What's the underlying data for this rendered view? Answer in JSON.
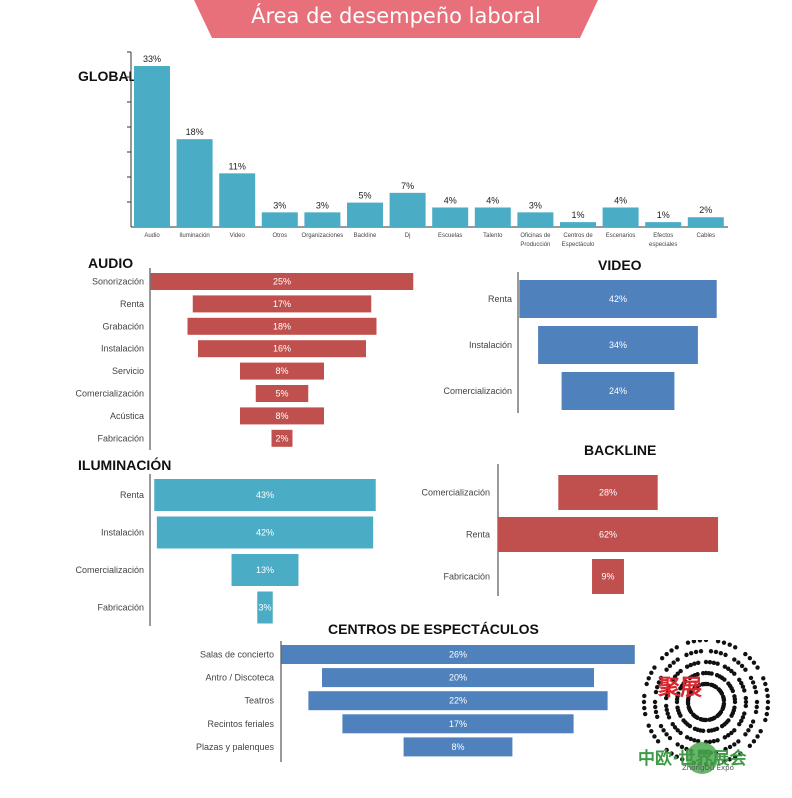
{
  "header": {
    "title": "Área de desempeño laboral"
  },
  "colors": {
    "banner": "#e8707a",
    "global": "#4bacc6",
    "audio": "#c0504d",
    "video": "#4f81bd",
    "iluminacion": "#4bacc6",
    "backline": "#c0504d",
    "centros": "#4f81bd"
  },
  "chart_data": [
    {
      "id": "global",
      "type": "bar",
      "title": "GLOBAL",
      "categories": [
        "Audio",
        "Iluminación",
        "Video",
        "Otros",
        "Organizaciones",
        "Backline",
        "Dj",
        "Escuelas",
        "Talento",
        "Oficinas de Producción",
        "Centros de Espectáculo",
        "Escenarios",
        "Efectos especiales",
        "Cables"
      ],
      "values": [
        33,
        18,
        11,
        3,
        3,
        5,
        7,
        4,
        4,
        3,
        1,
        4,
        1,
        2
      ],
      "unit": "%",
      "ylim": [
        0,
        35
      ]
    },
    {
      "id": "audio",
      "type": "bar",
      "orientation": "funnel",
      "title": "AUDIO",
      "categories": [
        "Sonorización",
        "Renta",
        "Grabación",
        "Instalación",
        "Servicio",
        "Comercialización",
        "Acústica",
        "Fabricación"
      ],
      "values": [
        25,
        17,
        18,
        16,
        8,
        5,
        8,
        2
      ],
      "unit": "%"
    },
    {
      "id": "video",
      "type": "bar",
      "orientation": "funnel",
      "title": "VIDEO",
      "categories": [
        "Renta",
        "Instalación",
        "Comercialización"
      ],
      "values": [
        42,
        34,
        24
      ],
      "unit": "%"
    },
    {
      "id": "iluminacion",
      "type": "bar",
      "orientation": "funnel",
      "title": "ILUMINACIÓN",
      "categories": [
        "Renta",
        "Instalación",
        "Comercialización",
        "Fabricación"
      ],
      "values": [
        43,
        42,
        13,
        3
      ],
      "unit": "%"
    },
    {
      "id": "backline",
      "type": "bar",
      "orientation": "funnel",
      "title": "BACKLINE",
      "categories": [
        "Comercialización",
        "Renta",
        "Fabricación"
      ],
      "values": [
        28,
        62,
        9
      ],
      "unit": "%"
    },
    {
      "id": "centros",
      "type": "bar",
      "orientation": "funnel",
      "title": "CENTROS DE ESPECTÁCULOS",
      "categories": [
        "Salas de concierto",
        "Antro / Discoteca",
        "Teatros",
        "Recintos feriales",
        "Plazas y palenques"
      ],
      "values": [
        26,
        20,
        22,
        17,
        8
      ],
      "unit": "%"
    }
  ],
  "watermark": {
    "brand_cn": "聚展",
    "brand_site": "中欧·世界展会",
    "brand_en": "ZhongOu Expo"
  }
}
